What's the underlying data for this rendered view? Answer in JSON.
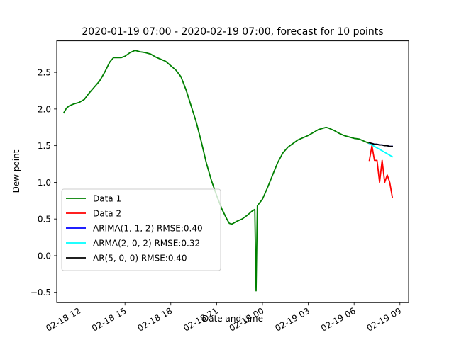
{
  "chart_data": {
    "type": "line",
    "title": "2020-01-19 07:00 - 2020-02-19 07:00, forecast for 10 points",
    "xlabel": "Date and time",
    "ylabel": "Dew point",
    "xlim": [
      "2020-02-18 10:32",
      "2020-02-19 09:34"
    ],
    "ylim": [
      -0.64,
      2.93
    ],
    "xticks": [
      {
        "t": "2020-02-18 12:00",
        "label": "02-18 12"
      },
      {
        "t": "2020-02-18 15:00",
        "label": "02-18 15"
      },
      {
        "t": "2020-02-18 18:00",
        "label": "02-18 18"
      },
      {
        "t": "2020-02-18 21:00",
        "label": "02-18 21"
      },
      {
        "t": "2020-02-19 00:00",
        "label": "02-19 00"
      },
      {
        "t": "2020-02-19 03:00",
        "label": "02-19 03"
      },
      {
        "t": "2020-02-19 06:00",
        "label": "02-19 06"
      },
      {
        "t": "2020-02-19 09:00",
        "label": "02-19 09"
      }
    ],
    "yticks": [
      -0.5,
      0.0,
      0.5,
      1.0,
      1.5,
      2.0,
      2.5
    ],
    "ytick_labels": [
      "−0.5",
      "0.0",
      "0.5",
      "1.0",
      "1.5",
      "2.0",
      "2.5"
    ],
    "grid": false,
    "legend": "lower-left",
    "series": [
      {
        "name": "Data 1",
        "color": "#008000",
        "points": [
          [
            "2020-02-18 11:00",
            1.95
          ],
          [
            "2020-02-18 11:10",
            2.01
          ],
          [
            "2020-02-18 11:20",
            2.04
          ],
          [
            "2020-02-18 11:40",
            2.07
          ],
          [
            "2020-02-18 12:00",
            2.09
          ],
          [
            "2020-02-18 12:20",
            2.13
          ],
          [
            "2020-02-18 12:40",
            2.22
          ],
          [
            "2020-02-18 13:00",
            2.3
          ],
          [
            "2020-02-18 13:20",
            2.38
          ],
          [
            "2020-02-18 13:40",
            2.5
          ],
          [
            "2020-02-18 14:00",
            2.64
          ],
          [
            "2020-02-18 14:15",
            2.7
          ],
          [
            "2020-02-18 14:30",
            2.7
          ],
          [
            "2020-02-18 14:45",
            2.7
          ],
          [
            "2020-02-18 15:00",
            2.72
          ],
          [
            "2020-02-18 15:20",
            2.77
          ],
          [
            "2020-02-18 15:40",
            2.8
          ],
          [
            "2020-02-18 16:00",
            2.78
          ],
          [
            "2020-02-18 16:20",
            2.77
          ],
          [
            "2020-02-18 16:40",
            2.75
          ],
          [
            "2020-02-18 17:00",
            2.71
          ],
          [
            "2020-02-18 17:20",
            2.68
          ],
          [
            "2020-02-18 17:40",
            2.65
          ],
          [
            "2020-02-18 18:00",
            2.59
          ],
          [
            "2020-02-18 18:20",
            2.53
          ],
          [
            "2020-02-18 18:40",
            2.44
          ],
          [
            "2020-02-18 19:00",
            2.26
          ],
          [
            "2020-02-18 19:20",
            2.04
          ],
          [
            "2020-02-18 19:40",
            1.82
          ],
          [
            "2020-02-18 20:00",
            1.55
          ],
          [
            "2020-02-18 20:20",
            1.26
          ],
          [
            "2020-02-18 20:40",
            1.02
          ],
          [
            "2020-02-18 21:00",
            0.82
          ],
          [
            "2020-02-18 21:20",
            0.64
          ],
          [
            "2020-02-18 21:40",
            0.5
          ],
          [
            "2020-02-18 21:50",
            0.44
          ],
          [
            "2020-02-18 22:00",
            0.43
          ],
          [
            "2020-02-18 22:20",
            0.47
          ],
          [
            "2020-02-18 22:40",
            0.5
          ],
          [
            "2020-02-18 23:00",
            0.55
          ],
          [
            "2020-02-18 23:20",
            0.61
          ],
          [
            "2020-02-18 23:30",
            0.63
          ],
          [
            "2020-02-18 23:35",
            -0.48
          ],
          [
            "2020-02-18 23:40",
            0.68
          ],
          [
            "2020-02-19 00:00",
            0.77
          ],
          [
            "2020-02-19 00:20",
            0.93
          ],
          [
            "2020-02-19 00:40",
            1.1
          ],
          [
            "2020-02-19 01:00",
            1.27
          ],
          [
            "2020-02-19 01:20",
            1.4
          ],
          [
            "2020-02-19 01:40",
            1.48
          ],
          [
            "2020-02-19 02:00",
            1.53
          ],
          [
            "2020-02-19 02:20",
            1.58
          ],
          [
            "2020-02-19 02:40",
            1.61
          ],
          [
            "2020-02-19 03:00",
            1.64
          ],
          [
            "2020-02-19 03:20",
            1.68
          ],
          [
            "2020-02-19 03:40",
            1.72
          ],
          [
            "2020-02-19 04:00",
            1.74
          ],
          [
            "2020-02-19 04:10",
            1.75
          ],
          [
            "2020-02-19 04:20",
            1.74
          ],
          [
            "2020-02-19 04:40",
            1.71
          ],
          [
            "2020-02-19 05:00",
            1.67
          ],
          [
            "2020-02-19 05:20",
            1.64
          ],
          [
            "2020-02-19 05:40",
            1.62
          ],
          [
            "2020-02-19 06:00",
            1.6
          ],
          [
            "2020-02-19 06:20",
            1.59
          ],
          [
            "2020-02-19 06:40",
            1.56
          ],
          [
            "2020-02-19 07:00",
            1.53
          ]
        ]
      },
      {
        "name": "Data 2",
        "color": "#ff0000",
        "points": [
          [
            "2020-02-19 07:00",
            1.3
          ],
          [
            "2020-02-19 07:10",
            1.5
          ],
          [
            "2020-02-19 07:20",
            1.3
          ],
          [
            "2020-02-19 07:30",
            1.3
          ],
          [
            "2020-02-19 07:40",
            1.0
          ],
          [
            "2020-02-19 07:50",
            1.3
          ],
          [
            "2020-02-19 08:00",
            1.0
          ],
          [
            "2020-02-19 08:10",
            1.1
          ],
          [
            "2020-02-19 08:20",
            1.0
          ],
          [
            "2020-02-19 08:30",
            0.8
          ]
        ]
      },
      {
        "name": "ARIMA(1, 1, 2) RMSE:0.40",
        "color": "#0000ff",
        "points": [
          [
            "2020-02-19 07:00",
            1.53
          ],
          [
            "2020-02-19 07:10",
            1.53
          ],
          [
            "2020-02-19 07:20",
            1.52
          ],
          [
            "2020-02-19 07:30",
            1.52
          ],
          [
            "2020-02-19 07:40",
            1.51
          ],
          [
            "2020-02-19 07:50",
            1.51
          ],
          [
            "2020-02-19 08:00",
            1.5
          ],
          [
            "2020-02-19 08:10",
            1.5
          ],
          [
            "2020-02-19 08:20",
            1.49
          ],
          [
            "2020-02-19 08:30",
            1.49
          ]
        ]
      },
      {
        "name": "ARMA(2, 0, 2) RMSE:0.32",
        "color": "#00ffff",
        "points": [
          [
            "2020-02-19 07:00",
            1.53
          ],
          [
            "2020-02-19 07:10",
            1.51
          ],
          [
            "2020-02-19 07:20",
            1.49
          ],
          [
            "2020-02-19 07:30",
            1.47
          ],
          [
            "2020-02-19 07:40",
            1.45
          ],
          [
            "2020-02-19 07:50",
            1.43
          ],
          [
            "2020-02-19 08:00",
            1.41
          ],
          [
            "2020-02-19 08:10",
            1.39
          ],
          [
            "2020-02-19 08:20",
            1.37
          ],
          [
            "2020-02-19 08:30",
            1.35
          ]
        ]
      },
      {
        "name": "AR(5, 0, 0) RMSE:0.40",
        "color": "#000000",
        "points": [
          [
            "2020-02-19 07:00",
            1.54
          ],
          [
            "2020-02-19 07:10",
            1.53
          ],
          [
            "2020-02-19 07:20",
            1.52
          ],
          [
            "2020-02-19 07:30",
            1.52
          ],
          [
            "2020-02-19 07:40",
            1.51
          ],
          [
            "2020-02-19 07:50",
            1.51
          ],
          [
            "2020-02-19 08:00",
            1.5
          ],
          [
            "2020-02-19 08:10",
            1.5
          ],
          [
            "2020-02-19 08:20",
            1.49
          ],
          [
            "2020-02-19 08:30",
            1.49
          ]
        ]
      }
    ]
  }
}
